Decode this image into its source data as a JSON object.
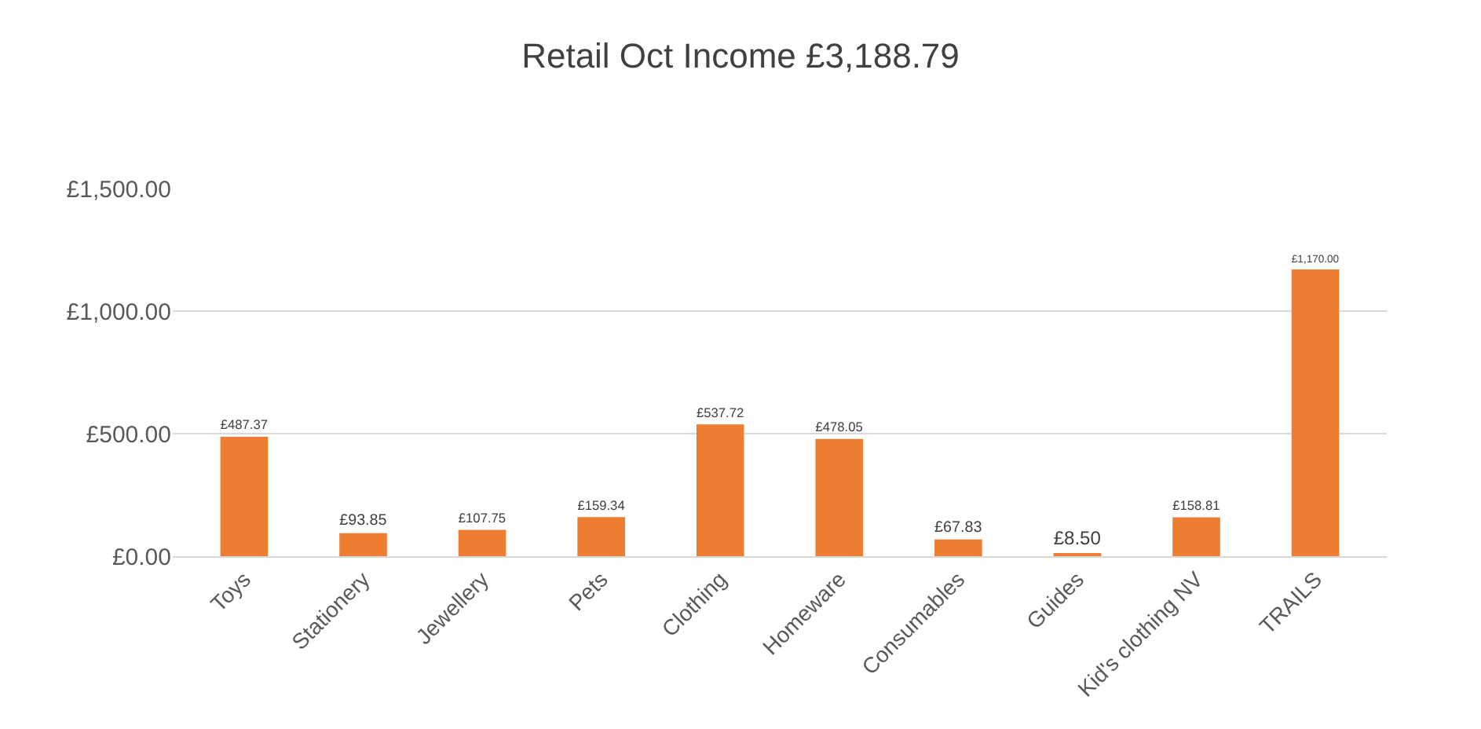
{
  "chart_data": {
    "type": "bar",
    "title": "Retail Oct Income £3,188.79",
    "categories": [
      "Toys",
      "Stationery",
      "Jewellery",
      "Pets",
      "Clothing",
      "Homeware",
      "Consumables",
      "Guides",
      "Kid's clothing NV",
      "TRAILS"
    ],
    "values": [
      487.37,
      93.85,
      107.75,
      159.34,
      537.72,
      478.05,
      67.83,
      8.5,
      158.81,
      1170.0
    ],
    "value_labels": [
      "£487.37",
      "£93.85",
      "£107.75",
      "£159.34",
      "£537.72",
      "£478.05",
      "£67.83",
      "£8.50",
      "£158.81",
      "£1,170.00"
    ],
    "color": "#ed7d31",
    "ylim": [
      0,
      1500
    ],
    "yticks": [
      {
        "value": 0,
        "label": "£0.00"
      },
      {
        "value": 500,
        "label": "£500.00"
      },
      {
        "value": 1000,
        "label": "£1,000.00"
      },
      {
        "value": 1500,
        "label": "£1,500.00"
      }
    ],
    "grid": "y"
  }
}
